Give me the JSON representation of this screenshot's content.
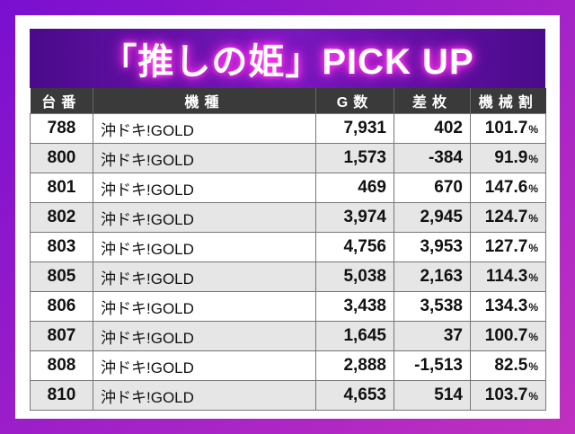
{
  "banner": {
    "title": "「推しの姫」PICK UP"
  },
  "table": {
    "headers": [
      "台番",
      "機種",
      "G数",
      "差枚",
      "機械割"
    ],
    "rows": [
      {
        "no": "788",
        "machine": "沖ドキ!GOLD",
        "games": "7,931",
        "diff": "402",
        "rate": "101.7"
      },
      {
        "no": "800",
        "machine": "沖ドキ!GOLD",
        "games": "1,573",
        "diff": "-384",
        "rate": "91.9"
      },
      {
        "no": "801",
        "machine": "沖ドキ!GOLD",
        "games": "469",
        "diff": "670",
        "rate": "147.6"
      },
      {
        "no": "802",
        "machine": "沖ドキ!GOLD",
        "games": "3,974",
        "diff": "2,945",
        "rate": "124.7"
      },
      {
        "no": "803",
        "machine": "沖ドキ!GOLD",
        "games": "4,756",
        "diff": "3,953",
        "rate": "127.7"
      },
      {
        "no": "805",
        "machine": "沖ドキ!GOLD",
        "games": "5,038",
        "diff": "2,163",
        "rate": "114.3"
      },
      {
        "no": "806",
        "machine": "沖ドキ!GOLD",
        "games": "3,438",
        "diff": "3,538",
        "rate": "134.3"
      },
      {
        "no": "807",
        "machine": "沖ドキ!GOLD",
        "games": "1,645",
        "diff": "37",
        "rate": "100.7"
      },
      {
        "no": "808",
        "machine": "沖ドキ!GOLD",
        "games": "2,888",
        "diff": "-1,513",
        "rate": "82.5"
      },
      {
        "no": "810",
        "machine": "沖ドキ!GOLD",
        "games": "4,653",
        "diff": "514",
        "rate": "103.7"
      }
    ],
    "percent_sign": "%"
  }
}
